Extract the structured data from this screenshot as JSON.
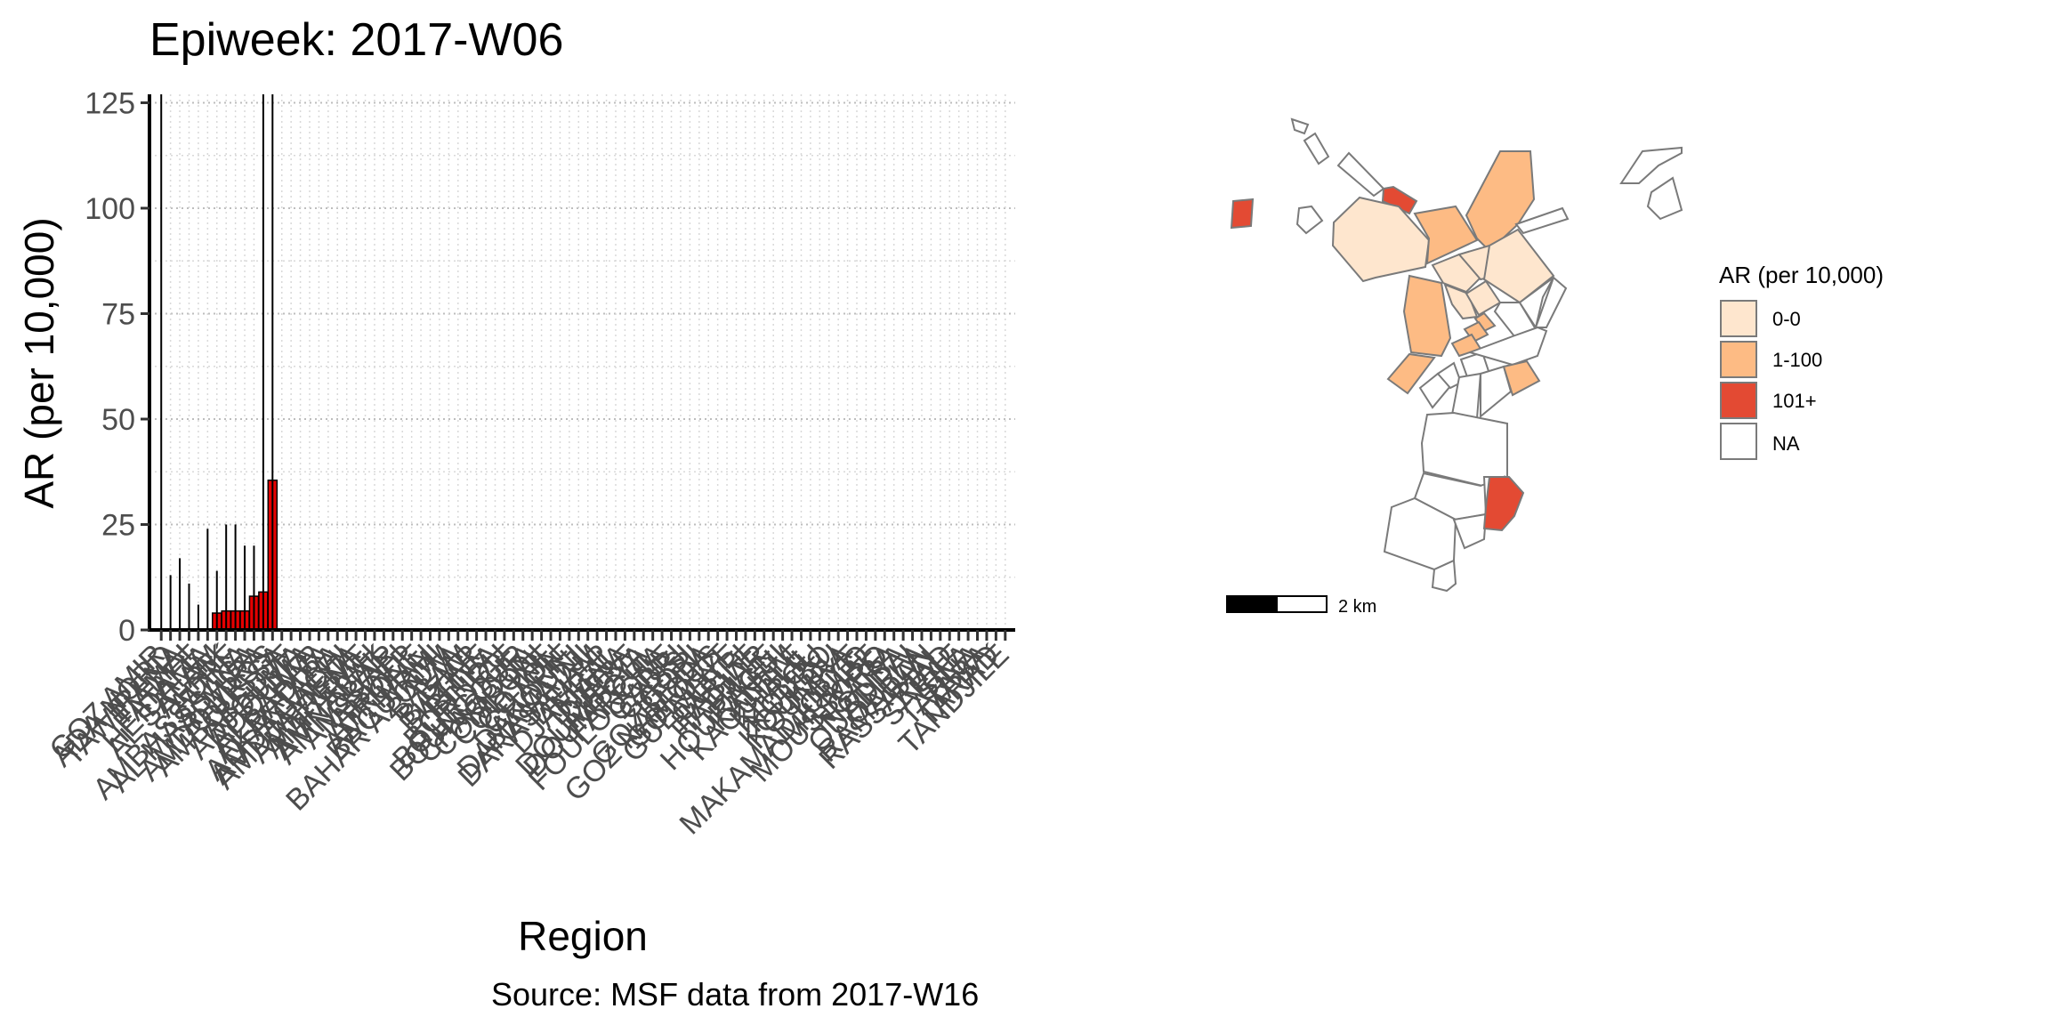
{
  "colors": {
    "bar_fill": "#e60000",
    "map_class_0": "#fee6ce",
    "map_class_1": "#fdbb84",
    "map_class_2": "#e34a33",
    "map_class_na": "#ffffff",
    "border": "#7a7a7a"
  },
  "chart_data": [
    {
      "type": "bar",
      "title": "Epiweek: 2017-W06",
      "xlabel": "Region",
      "ylabel": "AR (per 10,000)",
      "caption": "Source: MSF data from 2017-W16",
      "ylim": [
        0,
        127
      ],
      "yticks": [
        0,
        25,
        50,
        75,
        100,
        125
      ],
      "grid": "dotted",
      "n_categories": 92,
      "categories": [
        "GOZ AMIR",
        "ADA NORD",
        "TAWIRENA",
        "TIAMAI",
        "FATAFE",
        "HEIDAMA",
        "AL SALAM",
        "AFRIK",
        "ADRÉ",
        "AMBASSATNA",
        "AL MASSAGA",
        "ALMIRA",
        "AMDOUROS",
        "AMBOUSSA",
        "ABEDJE",
        "ADJOUMA",
        "ADOUMA",
        "ALBAHAR",
        "AL BADIYA",
        "ALKANTARA",
        "AMDAGACHI",
        "AMDJAMENA",
        "AMEREME",
        "AMFARAH",
        "AMNABAK",
        "AMNOUAR",
        "AMSSAFI",
        "ARDEP",
        "ATRONE",
        "AMTIMAN",
        "BAGUIRMI",
        "BAHAR AZOUM",
        "BALTA",
        "BAM",
        "BAZAR",
        "BILTINE",
        "BITEA",
        "BORNOU",
        "BOURDIGE",
        "BOUNGOUR",
        "CHAGOUA",
        "COMBONI",
        "COLLINE",
        "COTON",
        "CHARIF",
        "DAKOUNI",
        "DANAMADJI",
        "DARASALAM",
        "DELEP",
        "DJAMBAL",
        "DJANA",
        "DJEBE",
        "DOUMBEYA",
        "DOUMTOUL",
        "FARCHA",
        "FOULOUGNE",
        "GABRI",
        "GASSI",
        "GORI",
        "GOZBEIDA",
        "GOZ NAMOUS",
        "GOLOTIT",
        "GUEMEYE",
        "GUERI",
        "HABILE",
        "HADJAR",
        "HILLE",
        "HOURAGUI",
        "KANEM",
        "KAOUTILE",
        "KHALIL",
        "KILBOU",
        "KOUBO",
        "KOUKOU",
        "KOUMRA",
        "LIBYE",
        "MAKAMADJOULO",
        "MILIMBE",
        "MOUSSORO",
        "NGARA",
        "NOUBA",
        "OUADDAI",
        "OULLA",
        "RAMADAN",
        "RASSAHAL",
        "RIAD",
        "SARAF",
        "SILA",
        "TARNA",
        "TABA",
        "TARAD",
        "TANDJILÉ"
      ],
      "values": [
        0,
        0,
        0,
        0,
        0,
        0,
        4,
        4.5,
        4.5,
        4.5,
        8,
        9,
        35.5,
        0,
        0,
        0,
        0,
        0,
        0,
        0,
        0,
        0,
        0,
        0,
        0,
        0,
        0,
        0,
        0,
        0,
        0,
        0,
        0,
        0,
        0,
        0,
        0,
        0,
        0,
        0,
        0,
        0,
        0,
        0,
        0,
        0,
        0,
        0,
        0,
        0,
        0,
        0,
        0,
        0,
        0,
        0,
        0,
        0,
        0,
        0,
        0,
        0,
        0,
        0,
        0,
        0,
        0,
        0,
        0,
        0,
        0,
        0,
        0,
        0,
        0,
        0,
        0,
        0,
        0,
        0,
        0,
        0,
        0,
        0,
        0,
        0,
        0,
        0,
        0,
        0,
        0,
        0
      ],
      "error_upper": [
        127,
        13,
        17,
        11,
        6,
        24,
        14,
        25,
        25,
        20,
        20,
        127,
        127
      ]
    },
    {
      "type": "choropleth",
      "legend_title": "AR (per 10,000)",
      "legend_placement": "right",
      "legend": [
        {
          "label": "0-0",
          "color": "#fee6ce"
        },
        {
          "label": "1-100",
          "color": "#fdbb84"
        },
        {
          "label": "101+",
          "color": "#e34a33"
        },
        {
          "label": "NA",
          "color": "#ffffff"
        }
      ],
      "scale_label": "2 km"
    }
  ]
}
